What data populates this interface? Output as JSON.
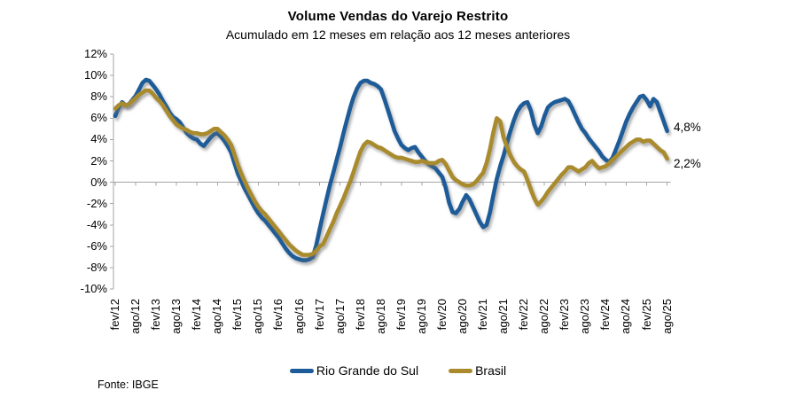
{
  "title": "Volume Vendas do Varejo Restrito",
  "subtitle": "Acumulado em 12 meses em relação aos 12 meses anteriores",
  "source": "Fonte: IBGE",
  "end_labels": {
    "rs": "4,8%",
    "brasil": "2,2%"
  },
  "colors": {
    "rs": "#1E5C99",
    "brasil": "#A98B2D",
    "axis": "#A6A6A6"
  },
  "chart_data": {
    "type": "line",
    "frequency": "monthly",
    "start": "fev/12",
    "end": "ago/25",
    "grid": "zero-line-only",
    "legend_position": "bottom",
    "ylim": [
      -10,
      12
    ],
    "y_tick_labels": [
      "12%",
      "10%",
      "8%",
      "6%",
      "4%",
      "2%",
      "0%",
      "-2%",
      "-4%",
      "-6%",
      "-8%",
      "-10%"
    ],
    "x_tick_labels": [
      "fev/12",
      "ago/12",
      "fev/13",
      "ago/13",
      "fev/14",
      "ago/14",
      "fev/15",
      "ago/15",
      "fev/16",
      "ago/16",
      "fev/17",
      "ago/17",
      "fev/18",
      "ago/18",
      "fev/19",
      "ago/19",
      "fev/20",
      "ago/20",
      "fev/21",
      "ago/21",
      "fev/22",
      "ago/22",
      "fev/23",
      "ago/23",
      "fev/24",
      "ago/24",
      "fev/25",
      "ago/25"
    ],
    "x_tick_month_interval": 6,
    "series": [
      {
        "name": "Rio Grande do Sul",
        "color": "#1E5C99",
        "end_label": "4,8%",
        "values": [
          6.2,
          7.0,
          7.5,
          7.2,
          7.3,
          7.7,
          8.1,
          8.7,
          9.3,
          9.6,
          9.5,
          9.1,
          8.7,
          8.2,
          7.6,
          7.1,
          6.5,
          6.1,
          5.9,
          5.6,
          5.1,
          4.6,
          4.3,
          4.1,
          4.0,
          3.6,
          3.4,
          3.8,
          4.2,
          4.5,
          4.6,
          4.3,
          3.9,
          3.4,
          2.8,
          1.8,
          0.8,
          0.1,
          -0.6,
          -1.2,
          -1.8,
          -2.4,
          -2.9,
          -3.3,
          -3.6,
          -4.0,
          -4.4,
          -4.8,
          -5.2,
          -5.7,
          -6.2,
          -6.6,
          -6.9,
          -7.1,
          -7.2,
          -7.3,
          -7.3,
          -7.2,
          -7.0,
          -5.9,
          -4.4,
          -3.0,
          -1.6,
          -0.3,
          0.9,
          2.1,
          3.3,
          4.6,
          5.8,
          7.0,
          8.0,
          8.8,
          9.3,
          9.5,
          9.5,
          9.3,
          9.2,
          9.0,
          8.7,
          7.8,
          6.8,
          5.8,
          4.8,
          4.1,
          3.5,
          3.2,
          3.0,
          3.2,
          3.3,
          2.8,
          2.4,
          2.0,
          1.7,
          1.5,
          1.3,
          0.9,
          0.5,
          -0.5,
          -1.9,
          -2.8,
          -2.9,
          -2.5,
          -1.8,
          -1.2,
          -1.6,
          -2.3,
          -3.0,
          -3.7,
          -4.2,
          -4.0,
          -2.8,
          -1.2,
          0.3,
          1.5,
          2.5,
          3.7,
          4.8,
          5.8,
          6.6,
          7.1,
          7.4,
          7.5,
          6.7,
          5.4,
          4.6,
          5.2,
          6.2,
          7.0,
          7.3,
          7.5,
          7.6,
          7.7,
          7.8,
          7.6,
          7.0,
          6.3,
          5.6,
          5.0,
          4.6,
          4.1,
          3.7,
          3.3,
          2.9,
          2.4,
          2.1,
          1.9,
          2.3,
          3.1,
          3.9,
          4.8,
          5.7,
          6.4,
          7.0,
          7.5,
          8.0,
          8.1,
          7.7,
          7.1,
          7.8,
          7.5,
          6.6,
          5.7,
          4.8
        ]
      },
      {
        "name": "Brasil",
        "color": "#A98B2D",
        "end_label": "2,2%",
        "values": [
          6.9,
          7.2,
          7.4,
          7.2,
          7.3,
          7.6,
          7.9,
          8.2,
          8.4,
          8.6,
          8.6,
          8.3,
          7.9,
          7.6,
          7.2,
          6.7,
          6.2,
          5.8,
          5.4,
          5.2,
          5.0,
          4.9,
          4.7,
          4.6,
          4.6,
          4.5,
          4.5,
          4.6,
          4.8,
          5.0,
          5.0,
          4.7,
          4.4,
          4.0,
          3.5,
          2.6,
          1.6,
          0.8,
          0.1,
          -0.6,
          -1.2,
          -1.8,
          -2.3,
          -2.7,
          -3.0,
          -3.4,
          -3.8,
          -4.2,
          -4.6,
          -5.0,
          -5.4,
          -5.8,
          -6.1,
          -6.4,
          -6.6,
          -6.8,
          -6.8,
          -6.8,
          -6.7,
          -6.4,
          -6.0,
          -5.8,
          -5.1,
          -4.4,
          -3.7,
          -2.9,
          -2.2,
          -1.5,
          -0.7,
          0.1,
          1.0,
          2.0,
          2.9,
          3.5,
          3.8,
          3.7,
          3.5,
          3.3,
          3.2,
          3.0,
          2.8,
          2.6,
          2.4,
          2.3,
          2.3,
          2.2,
          2.1,
          2.0,
          1.9,
          1.9,
          2.0,
          1.9,
          1.8,
          1.8,
          1.8,
          2.0,
          2.1,
          1.7,
          1.1,
          0.5,
          0.2,
          0.0,
          -0.2,
          -0.3,
          -0.3,
          -0.2,
          0.1,
          0.5,
          0.9,
          1.8,
          3.1,
          4.7,
          6.0,
          5.7,
          4.2,
          3.3,
          2.5,
          1.9,
          1.5,
          1.2,
          1.0,
          0.2,
          -0.7,
          -1.5,
          -2.1,
          -1.8,
          -1.4,
          -0.9,
          -0.5,
          -0.1,
          0.3,
          0.7,
          1.0,
          1.4,
          1.4,
          1.2,
          1.0,
          1.2,
          1.4,
          1.8,
          2.0,
          1.6,
          1.3,
          1.4,
          1.5,
          1.8,
          2.1,
          2.4,
          2.7,
          3.0,
          3.3,
          3.6,
          3.8,
          4.0,
          4.0,
          3.8,
          3.9,
          3.9,
          3.6,
          3.3,
          3.0,
          2.8,
          2.2
        ]
      }
    ]
  }
}
